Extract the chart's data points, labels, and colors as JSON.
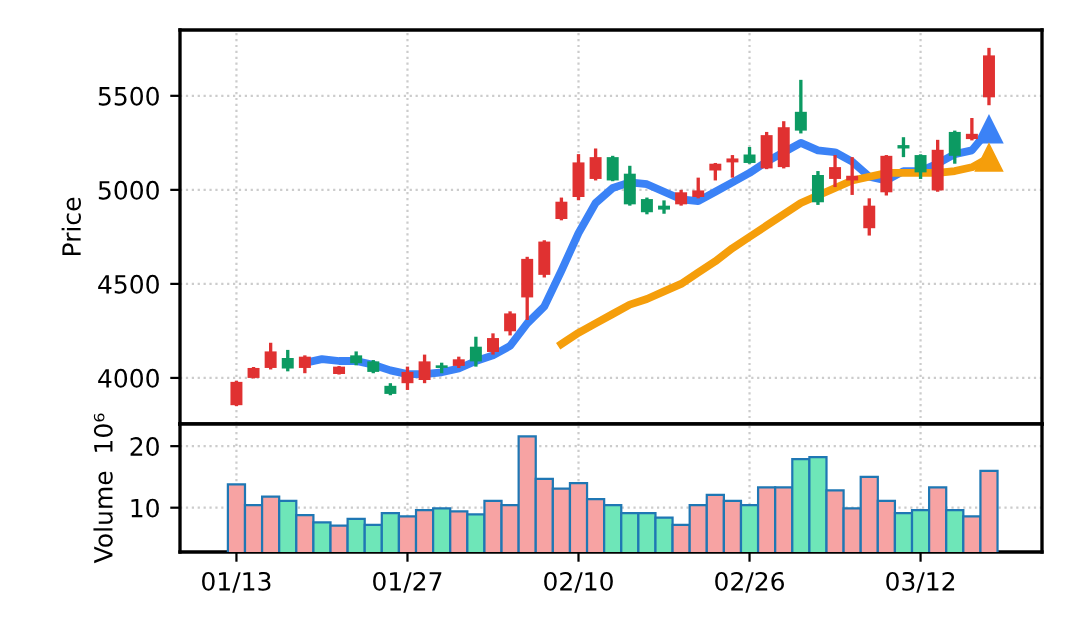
{
  "chart_data": [
    {
      "type": "candlestick",
      "ylabel": "Price",
      "categories": [
        null,
        null,
        null,
        null,
        null,
        null,
        null,
        null,
        null,
        null,
        null,
        null,
        null,
        null,
        null,
        null,
        null,
        null,
        null,
        null,
        null,
        null,
        null,
        null,
        null,
        null,
        null,
        null,
        null,
        null,
        null,
        null,
        null,
        null,
        null,
        null,
        null,
        null,
        null,
        null,
        null,
        null,
        null,
        null,
        null
      ],
      "ohlc": [
        [
          3855,
          3985,
          3850,
          3979
        ],
        [
          4000,
          4058,
          3997,
          4053
        ],
        [
          4053,
          4187,
          4045,
          4141
        ],
        [
          4106,
          4149,
          4035,
          4050
        ],
        [
          4053,
          4120,
          4025,
          4113
        ],
        null,
        [
          4021,
          4063,
          4018,
          4060
        ],
        [
          4120,
          4141,
          4067,
          4078
        ],
        [
          4088,
          4095,
          4025,
          4032
        ],
        [
          3958,
          3972,
          3908,
          3915
        ],
        [
          3972,
          4060,
          3936,
          4032
        ],
        [
          3989,
          4124,
          3972,
          4088
        ],
        [
          4067,
          4081,
          4025,
          4053
        ],
        [
          4064,
          4113,
          4053,
          4099
        ],
        [
          4166,
          4219,
          4060,
          4088
        ],
        [
          4138,
          4237,
          4124,
          4212
        ],
        [
          4248,
          4354,
          4226,
          4343
        ],
        [
          4428,
          4644,
          4308,
          4633
        ],
        [
          4548,
          4732,
          4534,
          4725
        ],
        [
          4845,
          4959,
          4838,
          4937
        ],
        [
          4962,
          5190,
          4945,
          5146
        ],
        [
          5058,
          5220,
          5050,
          5174
        ],
        [
          5174,
          5181,
          5046,
          5050
        ],
        [
          5086,
          5128,
          4916,
          4923
        ],
        [
          4951,
          4959,
          4870,
          4881
        ],
        [
          4916,
          4944,
          4873,
          4895
        ],
        [
          4923,
          5000,
          4916,
          4987
        ],
        [
          4962,
          5065,
          4955,
          4997
        ],
        [
          5103,
          5143,
          5050,
          5139
        ],
        [
          5146,
          5185,
          5065,
          5167
        ],
        [
          5188,
          5228,
          5139,
          5143
        ],
        [
          5114,
          5308,
          5110,
          5291
        ],
        [
          5121,
          5365,
          5114,
          5333
        ],
        [
          5415,
          5585,
          5300,
          5315
        ],
        [
          5079,
          5100,
          4920,
          4934
        ],
        [
          5058,
          5185,
          5015,
          5121
        ],
        [
          5050,
          5174,
          4973,
          5075
        ],
        [
          4796,
          4955,
          4757,
          4916
        ],
        [
          4987,
          5185,
          4970,
          5181
        ],
        [
          5238,
          5280,
          5174,
          5220
        ],
        [
          5185,
          5189,
          5058,
          5093
        ],
        [
          4997,
          5266,
          4990,
          5213
        ],
        [
          5308,
          5315,
          5139,
          5181
        ],
        [
          5270,
          5382,
          5263,
          5298
        ],
        [
          5492,
          5755,
          5450,
          5715
        ]
      ],
      "colors": [
        "#e03131",
        "#e03131",
        "#e03131",
        "#0c9a62",
        "#e03131",
        null,
        "#e03131",
        "#0c9a62",
        "#0c9a62",
        "#0c9a62",
        "#e03131",
        "#e03131",
        "#0c9a62",
        "#e03131",
        "#0c9a62",
        "#e03131",
        "#e03131",
        "#e03131",
        "#e03131",
        "#e03131",
        "#e03131",
        "#e03131",
        "#0c9a62",
        "#0c9a62",
        "#0c9a62",
        "#0c9a62",
        "#e03131",
        "#e03131",
        "#e03131",
        "#e03131",
        "#0c9a62",
        "#e03131",
        "#e03131",
        "#0c9a62",
        "#0c9a62",
        "#e03131",
        "#e03131",
        "#e03131",
        "#e03131",
        "#0c9a62",
        "#0c9a62",
        "#e03131",
        "#0c9a62",
        "#e03131",
        "#e03131"
      ],
      "series": [
        {
          "type": "line",
          "color": "#3b82f6",
          "values": [
            null,
            null,
            null,
            null,
            4080,
            4100,
            4090,
            4090,
            4070,
            4040,
            4020,
            4020,
            4030,
            4050,
            4090,
            4120,
            4170,
            4290,
            4380,
            4570,
            4770,
            4930,
            5010,
            5040,
            5030,
            4990,
            4950,
            4940,
            4990,
            5040,
            5090,
            5150,
            5200,
            5250,
            5210,
            5200,
            5150,
            5070,
            5050,
            5100,
            5100,
            5140,
            5190,
            5210,
            5320
          ]
        },
        {
          "type": "line",
          "color": "#f59e0b",
          "values": [
            null,
            null,
            null,
            null,
            null,
            null,
            null,
            null,
            null,
            null,
            null,
            null,
            null,
            null,
            null,
            null,
            null,
            null,
            null,
            4180,
            4240,
            4290,
            4340,
            4390,
            4420,
            4460,
            4500,
            4560,
            4620,
            4690,
            4750,
            4810,
            4870,
            4930,
            4970,
            5010,
            5050,
            5070,
            5090,
            5090,
            5090,
            5090,
            5100,
            5120,
            5170
          ]
        }
      ],
      "ylim": [
        3755,
        5850
      ],
      "yticks": [
        4000,
        4500,
        5000,
        5500
      ],
      "grid": true
    },
    {
      "type": "bar",
      "ylabel": "Volume  10⁶",
      "categories": [
        "01/13",
        null,
        null,
        null,
        null,
        null,
        null,
        null,
        null,
        null,
        "01/27",
        null,
        null,
        null,
        null,
        null,
        null,
        null,
        null,
        null,
        "02/10",
        null,
        null,
        null,
        null,
        null,
        null,
        null,
        null,
        null,
        "02/26",
        null,
        null,
        null,
        null,
        null,
        null,
        null,
        null,
        null,
        "03/12",
        null,
        null,
        null,
        null
      ],
      "values": [
        13.8,
        10.4,
        11.8,
        11.1,
        8.8,
        7.6,
        7.1,
        8.2,
        7.2,
        9.1,
        8.6,
        9.6,
        9.9,
        9.4,
        8.9,
        11.1,
        10.4,
        21.6,
        14.7,
        13.1,
        14.0,
        11.4,
        10.4,
        9.1,
        9.1,
        8.4,
        7.2,
        10.4,
        12.1,
        11.1,
        10.4,
        13.3,
        13.3,
        17.9,
        18.2,
        12.8,
        9.9,
        15.0,
        11.1,
        9.1,
        9.6,
        13.3,
        9.6,
        8.6,
        16.0
      ],
      "colors": [
        "#f7a3a3",
        "#f7a3a3",
        "#f7a3a3",
        "#6ee6b8",
        "#f7a3a3",
        "#6ee6b8",
        "#f7a3a3",
        "#6ee6b8",
        "#6ee6b8",
        "#6ee6b8",
        "#f7a3a3",
        "#f7a3a3",
        "#6ee6b8",
        "#f7a3a3",
        "#6ee6b8",
        "#f7a3a3",
        "#f7a3a3",
        "#f7a3a3",
        "#f7a3a3",
        "#f7a3a3",
        "#f7a3a3",
        "#f7a3a3",
        "#6ee6b8",
        "#6ee6b8",
        "#6ee6b8",
        "#6ee6b8",
        "#f7a3a3",
        "#f7a3a3",
        "#f7a3a3",
        "#f7a3a3",
        "#6ee6b8",
        "#f7a3a3",
        "#f7a3a3",
        "#6ee6b8",
        "#6ee6b8",
        "#f7a3a3",
        "#f7a3a3",
        "#f7a3a3",
        "#f7a3a3",
        "#6ee6b8",
        "#6ee6b8",
        "#f7a3a3",
        "#6ee6b8",
        "#f7a3a3",
        "#f7a3a3"
      ],
      "ylim": [
        2.8,
        23.6
      ],
      "yticks": [
        10,
        20
      ],
      "grid": true
    }
  ]
}
